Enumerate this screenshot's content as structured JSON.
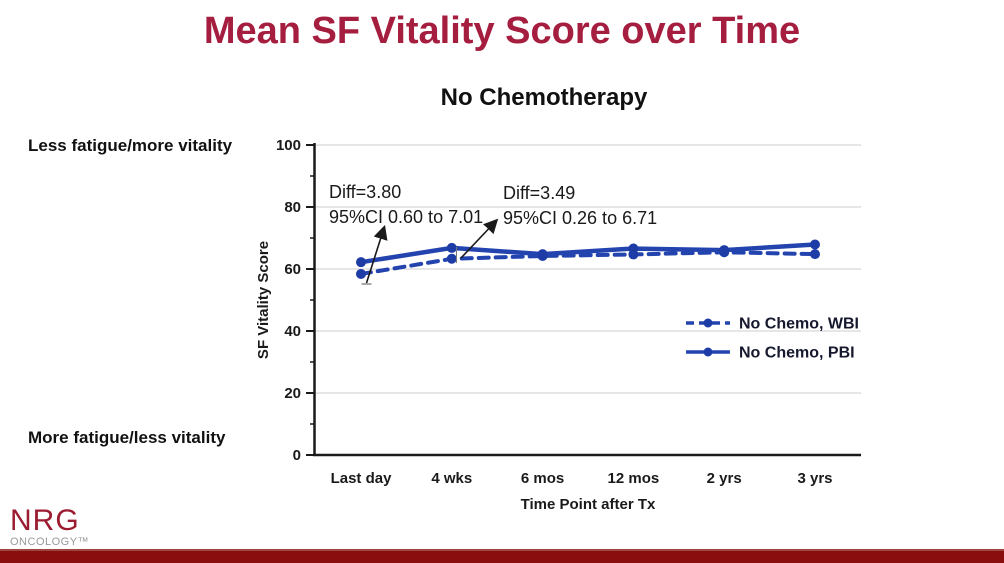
{
  "slide": {
    "title": "Mean SF Vitality Score over Time",
    "subtitle": "No Chemotherapy",
    "left_label_top": "Less fatigue/more vitality",
    "left_label_bottom": "More fatigue/less vitality",
    "logo": {
      "name": "NRG",
      "subname": "ONCOLOGY™"
    },
    "colors": {
      "title_crimson": "#A51E3F",
      "accent_bar_red": "#8A0E0E",
      "line_blue": "#2344AE",
      "marker_blue": "#1D3CA6",
      "gridline_gray": "#D8D8D8",
      "axis_black": "#1A1A1A",
      "logo_red": "#9B1B30",
      "logo_gray": "#9A9A9A"
    }
  },
  "chart_data": {
    "type": "line",
    "title": "No Chemotherapy",
    "categories": [
      "Last day",
      "4 wks",
      "6 mos",
      "12 mos",
      "2 yrs",
      "3 yrs"
    ],
    "series": [
      {
        "name": "No Chemo, WBI",
        "style": "dashed",
        "values": [
          58.4,
          63.3,
          64.2,
          64.7,
          65.4,
          64.8
        ]
      },
      {
        "name": "No Chemo, PBI",
        "style": "solid",
        "values": [
          62.2,
          66.8,
          64.8,
          66.6,
          66.1,
          67.9
        ]
      }
    ],
    "xlabel": "Time Point after Tx",
    "ylabel": "SF Vitality Score",
    "ylim": [
      0,
      100
    ],
    "ytick_step": 20,
    "yminor_step": 10,
    "grid": true,
    "legend_position": "middle-right",
    "annotations": [
      {
        "line1": "Diff=3.80",
        "line2": "95%CI 0.60 to 7.01",
        "target": "Last day"
      },
      {
        "line1": "Diff=3.49",
        "line2": "95%CI 0.26 to 6.71",
        "target": "4 wks"
      }
    ]
  }
}
